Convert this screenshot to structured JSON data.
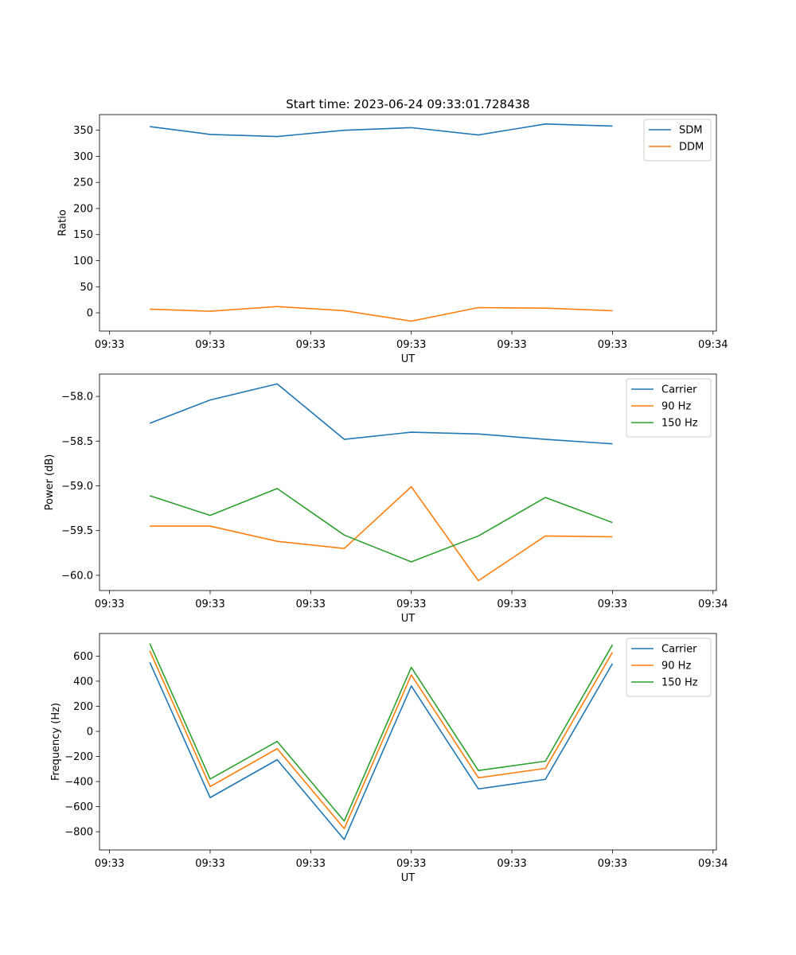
{
  "title": "Start time: 2023-06-24 09:33:01.728438",
  "x_tick_labels": [
    "09:33",
    "09:33",
    "09:33",
    "09:33",
    "09:33",
    "09:33",
    "09:34"
  ],
  "colors": {
    "blue": "#1f77b4",
    "orange": "#ff7f0e",
    "green": "#2ca02c"
  },
  "chart_data": [
    {
      "type": "line",
      "title": "Start time: 2023-06-24 09:33:01.728438",
      "xlabel": "UT",
      "ylabel": "Ratio",
      "x": [
        "09:33:02.0",
        "09:33:02.9",
        "09:33:03.9",
        "09:33:04.9",
        "09:33:05.9",
        "09:33:06.9",
        "09:33:07.9",
        "09:33:08.9"
      ],
      "xlim": [
        "09:33:01.25",
        "09:33:10.45"
      ],
      "x_ticks": [
        "09:33:01.4",
        "09:33:02.9",
        "09:33:04.4",
        "09:33:05.9",
        "09:33:07.4",
        "09:33:08.9",
        "09:33:10.4"
      ],
      "ylim": [
        -35,
        380
      ],
      "y_ticks": [
        0,
        50,
        100,
        150,
        200,
        250,
        300,
        350
      ],
      "legend": "top-right",
      "series": [
        {
          "name": "SDM",
          "color": "#1f77b4",
          "values": [
            357,
            342,
            338,
            350,
            355,
            341,
            362,
            358
          ]
        },
        {
          "name": "DDM",
          "color": "#ff7f0e",
          "values": [
            7,
            3,
            12,
            4,
            -16,
            10,
            9,
            4
          ]
        }
      ]
    },
    {
      "type": "line",
      "xlabel": "UT",
      "ylabel": "Power (dB)",
      "x": [
        "09:33:02.0",
        "09:33:02.9",
        "09:33:03.9",
        "09:33:04.9",
        "09:33:05.9",
        "09:33:06.9",
        "09:33:07.9",
        "09:33:08.9"
      ],
      "xlim": [
        "09:33:01.25",
        "09:33:10.45"
      ],
      "x_ticks": [
        "09:33:01.4",
        "09:33:02.9",
        "09:33:04.4",
        "09:33:05.9",
        "09:33:07.4",
        "09:33:08.9",
        "09:33:10.4"
      ],
      "ylim": [
        -60.17,
        -57.75
      ],
      "y_ticks": [
        -58.0,
        -58.5,
        -59.0,
        -59.5,
        -60.0
      ],
      "y_tick_labels": [
        "−58.0",
        "−58.5",
        "−59.0",
        "−59.5",
        "−60.0"
      ],
      "legend": "top-right",
      "series": [
        {
          "name": "Carrier",
          "color": "#1f77b4",
          "values": [
            -58.3,
            -58.04,
            -57.86,
            -58.48,
            -58.4,
            -58.42,
            -58.48,
            -58.53
          ]
        },
        {
          "name": "90 Hz",
          "color": "#ff7f0e",
          "values": [
            -59.45,
            -59.45,
            -59.62,
            -59.7,
            -59.01,
            -60.06,
            -59.56,
            -59.57
          ]
        },
        {
          "name": "150 Hz",
          "color": "#2ca02c",
          "values": [
            -59.11,
            -59.33,
            -59.03,
            -59.55,
            -59.85,
            -59.56,
            -59.13,
            -59.41
          ]
        }
      ]
    },
    {
      "type": "line",
      "xlabel": "UT",
      "ylabel": "Frequency (Hz)",
      "x": [
        "09:33:02.0",
        "09:33:02.9",
        "09:33:03.9",
        "09:33:04.9",
        "09:33:05.9",
        "09:33:06.9",
        "09:33:07.9",
        "09:33:08.9"
      ],
      "xlim": [
        "09:33:01.25",
        "09:33:10.45"
      ],
      "x_ticks": [
        "09:33:01.4",
        "09:33:02.9",
        "09:33:04.4",
        "09:33:05.9",
        "09:33:07.4",
        "09:33:08.9",
        "09:33:10.4"
      ],
      "ylim": [
        -945,
        780
      ],
      "y_ticks": [
        600,
        400,
        200,
        0,
        -200,
        -400,
        -600,
        -800
      ],
      "y_tick_labels": [
        "600",
        "400",
        "200",
        "0",
        "−200",
        "−400",
        "−600",
        "−800"
      ],
      "legend": "top-right",
      "series": [
        {
          "name": "Carrier",
          "color": "#1f77b4",
          "values": [
            550,
            -528,
            -226,
            -862,
            362,
            -459,
            -382,
            540
          ]
        },
        {
          "name": "90 Hz",
          "color": "#ff7f0e",
          "values": [
            642,
            -440,
            -138,
            -775,
            450,
            -370,
            -295,
            630
          ]
        },
        {
          "name": "150 Hz",
          "color": "#2ca02c",
          "values": [
            700,
            -380,
            -80,
            -715,
            510,
            -312,
            -238,
            690
          ]
        }
      ]
    }
  ]
}
